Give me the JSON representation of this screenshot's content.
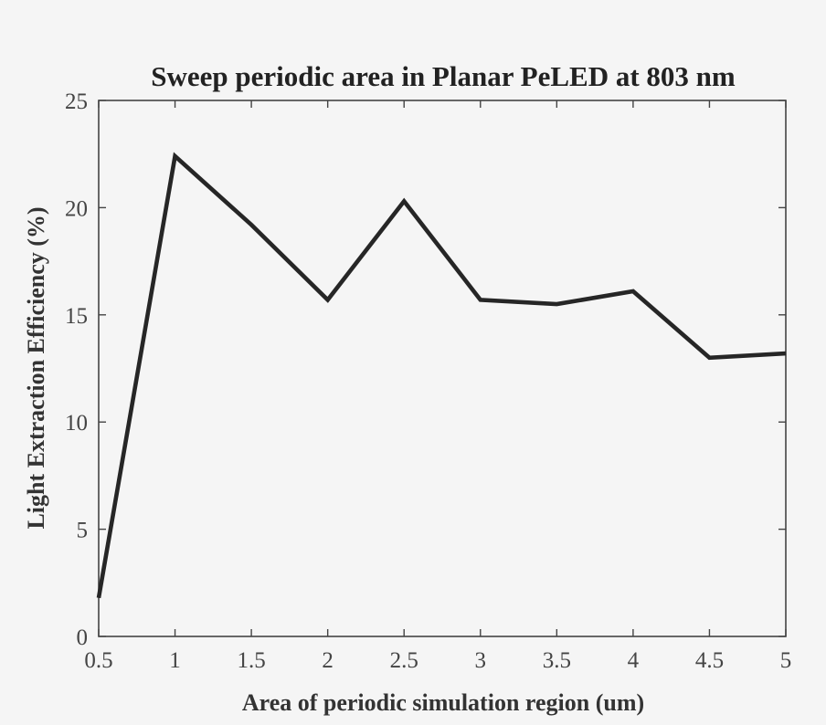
{
  "chart_data": {
    "type": "line",
    "title": "Sweep periodic area in Planar PeLED at 803 nm",
    "xlabel": "Area of periodic simulation region (um)",
    "ylabel": "Light Extraction Efficiency (%)",
    "xlim": [
      0.5,
      5
    ],
    "ylim": [
      0,
      25
    ],
    "x": [
      0.5,
      1,
      1.5,
      2,
      2.5,
      3,
      3.5,
      4,
      4.5,
      5
    ],
    "series": [
      {
        "values": [
          1.8,
          22.4,
          19.2,
          15.7,
          20.3,
          15.7,
          15.5,
          16.1,
          13.0,
          13.2
        ]
      }
    ],
    "xticks": [
      "0.5",
      "1",
      "1.5",
      "2",
      "2.5",
      "3",
      "3.5",
      "4",
      "4.5",
      "5"
    ],
    "yticks": [
      "0",
      "5",
      "10",
      "15",
      "20",
      "25"
    ],
    "line_color": "#262626",
    "background_color": "#f5f5f5",
    "grid": false,
    "legend": "none"
  }
}
